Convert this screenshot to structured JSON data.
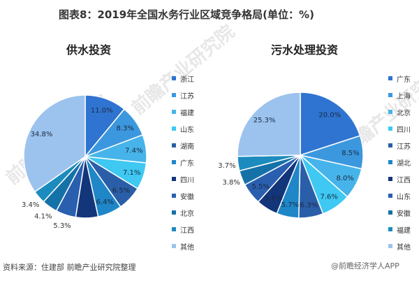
{
  "title": "图表8：2019年全国水务行业区域竞争格局(单位：%)",
  "source": "资料来源：住建部 前瞻产业研究院整理",
  "watermark": "@前瞻经济学人APP",
  "watermark_bg": "前瞻产业研究院",
  "chart_data": [
    {
      "type": "pie",
      "title": "供水投资",
      "categories": [
        "浙江",
        "江苏",
        "福建",
        "山东",
        "湖南",
        "广东",
        "四川",
        "安徽",
        "北京",
        "江西",
        "其他"
      ],
      "values": [
        11.0,
        8.3,
        7.4,
        7.1,
        6.5,
        6.4,
        5.9,
        5.3,
        4.1,
        3.4,
        34.8
      ],
      "labels": [
        "11.0%",
        "8.3%",
        "7.4%",
        "7.1%",
        "6.5%",
        "6.4%",
        "",
        "5.3%",
        "4.1%",
        "3.4%",
        "34.8%"
      ],
      "colors": [
        "#2f74d0",
        "#3c98de",
        "#46b4ea",
        "#3ec8f2",
        "#2b5ea8",
        "#1f86c8",
        "#13357a",
        "#2a5fb0",
        "#1572a8",
        "#1c8bbd",
        "#9cc3ee"
      ],
      "legend": "right"
    },
    {
      "type": "pie",
      "title": "污水处理投资",
      "categories": [
        "广东",
        "上海",
        "北京",
        "四川",
        "江苏",
        "湖北",
        "江西",
        "山东",
        "安徽",
        "福建",
        "其他"
      ],
      "values": [
        20.0,
        8.5,
        8.0,
        7.6,
        6.3,
        5.7,
        5.6,
        5.5,
        3.8,
        3.7,
        25.3
      ],
      "labels": [
        "20.0%",
        "8.5%",
        "8.0%",
        "7.6%",
        "6.3%",
        "5.7%",
        "5.6%",
        "5.5%",
        "3.8%",
        "3.7%",
        "25.3%"
      ],
      "colors": [
        "#2f74d0",
        "#3c98de",
        "#46b4ea",
        "#3ec8f2",
        "#2b5ea8",
        "#1f86c8",
        "#13357a",
        "#2a5fb0",
        "#1572a8",
        "#1c8bbd",
        "#9cc3ee"
      ],
      "legend": "right"
    }
  ]
}
